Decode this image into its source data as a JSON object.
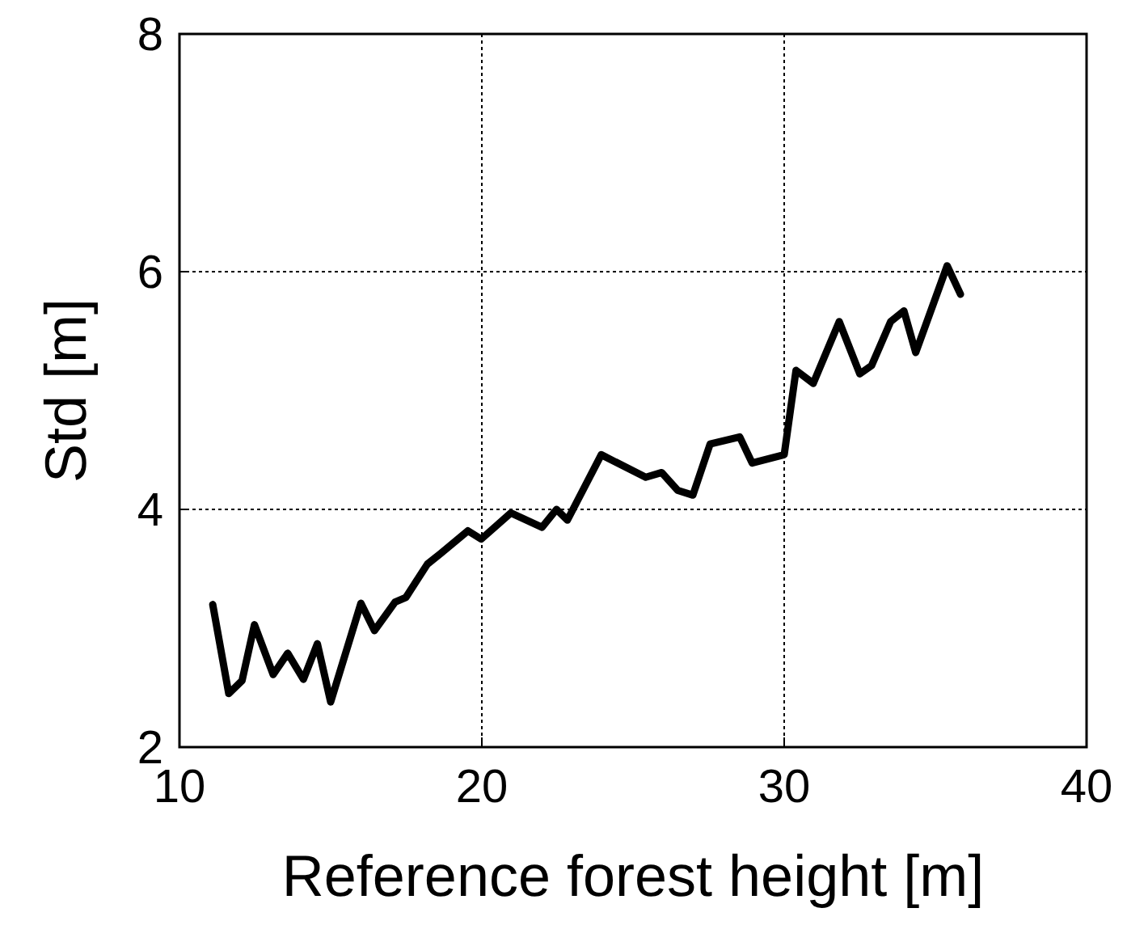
{
  "chart_data": {
    "type": "line",
    "xlabel": "Reference forest height [m]",
    "ylabel": "Std [m]",
    "xlim": [
      10,
      40
    ],
    "xticks": [
      10,
      20,
      30,
      40
    ],
    "ylim": [
      2,
      8
    ],
    "yticks": [
      2,
      4,
      6,
      8
    ],
    "grid": true,
    "line_style": "solid",
    "marker": "none",
    "series": [
      {
        "color": "#000000",
        "x": [
          11.1,
          11.63,
          12.07,
          12.48,
          13.1,
          13.58,
          14.1,
          14.56,
          15.0,
          16.0,
          16.45,
          17.13,
          17.49,
          18.2,
          18.64,
          19.54,
          19.98,
          20.96,
          21.99,
          22.47,
          22.83,
          23.95,
          25.42,
          25.95,
          26.48,
          26.98,
          27.55,
          28.53,
          28.94,
          30.0,
          30.39,
          30.96,
          31.82,
          32.5,
          32.89,
          33.52,
          33.96,
          34.35,
          35.39,
          35.83
        ],
        "values": [
          3.2,
          2.45,
          2.56,
          3.03,
          2.61,
          2.79,
          2.57,
          2.87,
          2.38,
          3.21,
          2.98,
          3.22,
          3.26,
          3.54,
          3.63,
          3.82,
          3.75,
          3.97,
          3.85,
          4.0,
          3.91,
          4.46,
          4.27,
          4.31,
          4.16,
          4.12,
          4.55,
          4.61,
          4.39,
          4.46,
          5.17,
          5.06,
          5.58,
          5.14,
          5.21,
          5.58,
          5.67,
          5.32,
          6.05,
          5.81
        ]
      }
    ]
  }
}
